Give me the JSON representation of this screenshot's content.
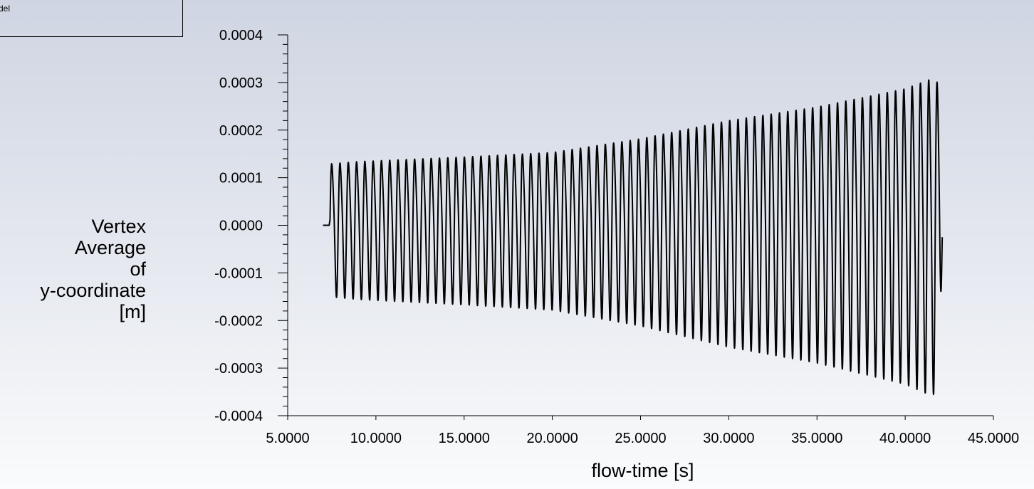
{
  "legend": {
    "text": "del"
  },
  "chart_data": {
    "type": "line",
    "title": "",
    "xlabel": "flow-time [s]",
    "ylabel_lines": [
      "Vertex",
      "Average",
      "of",
      "y-coordinate",
      "[m]"
    ],
    "xlim": [
      5,
      45
    ],
    "ylim": [
      -0.0004,
      0.0004
    ],
    "x_ticks": [
      5,
      10,
      15,
      20,
      25,
      30,
      35,
      40,
      45
    ],
    "x_tick_labels": [
      "5.0000",
      "10.0000",
      "15.0000",
      "20.0000",
      "25.0000",
      "30.0000",
      "35.0000",
      "40.0000",
      "45.0000"
    ],
    "y_ticks": [
      0.0004,
      0.0003,
      0.0002,
      0.0001,
      0.0,
      -0.0001,
      -0.0002,
      -0.0003,
      -0.0004
    ],
    "y_tick_labels": [
      "0.0004",
      "0.0003",
      "0.0002",
      "0.0001",
      "0.0000",
      "-0.0001",
      "-0.0002",
      "-0.0003",
      "-0.0004"
    ],
    "grid": false,
    "series": [
      {
        "color": "#000000",
        "description_points": {
          "flat_start": [
            7.0,
            0.0
          ],
          "oscillation_start": 7.4,
          "oscillation_end": 42.1,
          "period": 0.47,
          "envelope": [
            [
              7.4,
              0.000135
            ],
            [
              9.0,
              0.00014
            ],
            [
              12.0,
              0.000145
            ],
            [
              15.0,
              0.00015
            ],
            [
              20.0,
              0.00016
            ],
            [
              25.0,
              0.00019
            ],
            [
              30.0,
              0.00023
            ],
            [
              35.0,
              0.00026
            ],
            [
              40.0,
              0.0003
            ],
            [
              41.5,
              0.000322
            ],
            [
              42.0,
              0.00031
            ]
          ],
          "final_value": [
            42.1,
            -2.5e-05
          ]
        }
      }
    ]
  }
}
